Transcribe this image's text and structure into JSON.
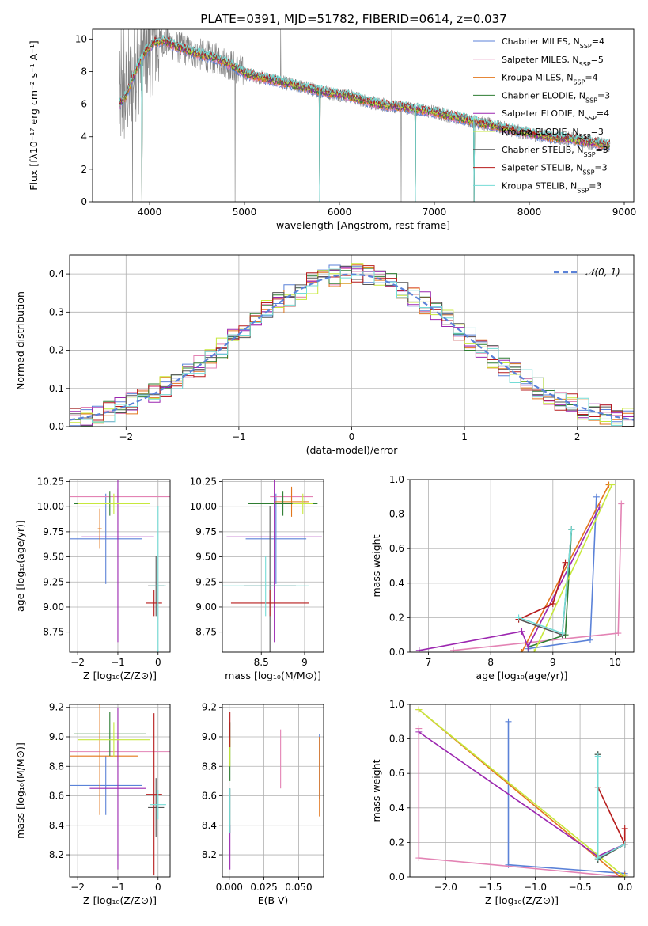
{
  "colors": {
    "c1": "#5b82d8",
    "c2": "#e383b4",
    "c3": "#e3761c",
    "c4": "#2e7d32",
    "c5": "#9c27b0",
    "c6": "#c7e83c",
    "c7": "#555555",
    "c8": "#b71c1c",
    "c9": "#74dcd6",
    "data": "#808080",
    "gauss": "#5b82d8"
  },
  "chart_data": [
    {
      "id": "spectrum",
      "type": "line",
      "title": "PLATE=0391, MJD=51782, FIBERID=0614, z=0.037",
      "xlabel": "wavelength [Angstrom, rest frame]",
      "ylabel": "Flux [fλ10⁻¹⁷ erg cm⁻² s⁻¹ A⁻¹]",
      "xlim": [
        3400,
        9100
      ],
      "ylim": [
        0,
        10.6
      ],
      "xticks": [
        4000,
        5000,
        6000,
        7000,
        8000,
        9000
      ],
      "yticks": [
        0,
        2,
        4,
        6,
        8,
        10
      ],
      "legend_position": "top-right",
      "legend": [
        {
          "label": "Chabrier MILES, N",
          "sub": "SSP",
          "suffix": "=4"
        },
        {
          "label": "Salpeter MILES, N",
          "sub": "SSP",
          "suffix": "=5"
        },
        {
          "label": "Kroupa MILES, N",
          "sub": "SSP",
          "suffix": "=4"
        },
        {
          "label": "Chabrier ELODIE, N",
          "sub": "SSP",
          "suffix": "=3"
        },
        {
          "label": "Salpeter ELODIE, N",
          "sub": "SSP",
          "suffix": "=4"
        },
        {
          "label": "Kroupa ELODIE, N",
          "sub": "SSP",
          "suffix": "=3"
        },
        {
          "label": "Chabrier STELIB, N",
          "sub": "SSP",
          "suffix": "=3"
        },
        {
          "label": "Salpeter STELIB, N",
          "sub": "SSP",
          "suffix": "=3"
        },
        {
          "label": "Kroupa STELIB, N",
          "sub": "SSP",
          "suffix": "=3"
        }
      ],
      "model_envelope": {
        "x": [
          3680,
          3750,
          3850,
          3950,
          4050,
          4150,
          4300,
          4500,
          4700,
          4860,
          5000,
          5200,
          5500,
          5800,
          6100,
          6400,
          6700,
          7000,
          7300,
          7600,
          7900,
          8200,
          8500,
          8800
        ],
        "y": [
          6.0,
          6.5,
          8.0,
          9.2,
          9.8,
          9.9,
          9.5,
          9.1,
          8.8,
          8.4,
          7.9,
          7.6,
          7.2,
          6.8,
          6.5,
          6.0,
          5.8,
          5.5,
          5.1,
          4.7,
          4.3,
          4.0,
          3.8,
          3.5
        ]
      },
      "model_drops": [
        3920,
        5790,
        6800,
        7420
      ],
      "data_spikes": [
        3700,
        3730,
        3780,
        3820,
        3870,
        4900,
        5380,
        6550,
        6650
      ]
    },
    {
      "id": "residuals",
      "type": "histogram",
      "xlabel": "(data-model)/error",
      "ylabel": "Normed distribution",
      "xlim": [
        -2.5,
        2.5
      ],
      "ylim": [
        0,
        0.45
      ],
      "xticks": [
        -2,
        -1,
        0,
        1,
        2
      ],
      "yticks": [
        0.0,
        0.1,
        0.2,
        0.3,
        0.4
      ],
      "legend_position": "top-right",
      "gauss_label": "𝒩(0, 1)",
      "bins": 50
    },
    {
      "id": "age-vs-Z",
      "type": "errorbar",
      "xlabel": "Z [log₁₀(Z/Z⊙)]",
      "ylabel": "age  [log₁₀(age/yr)]",
      "xlim": [
        -2.2,
        0.3
      ],
      "ylim": [
        8.55,
        10.27
      ],
      "xticks": [
        -2,
        -1,
        0
      ],
      "yticks": [
        8.75,
        9.0,
        9.25,
        9.5,
        9.75,
        10.0,
        10.25
      ],
      "points": [
        {
          "c": "c1",
          "x": -1.3,
          "y": 9.68,
          "xe": 0.9,
          "ye": 0.45
        },
        {
          "c": "c2",
          "x": -1.0,
          "y": 10.1,
          "xe": 1.3,
          "ye": 0.08
        },
        {
          "c": "c3",
          "x": -1.45,
          "y": 9.78,
          "xe": 0.05,
          "ye": 0.2
        },
        {
          "c": "c4",
          "x": -1.2,
          "y": 10.03,
          "xe": 0.9,
          "ye": 0.12
        },
        {
          "c": "c5",
          "x": -1.0,
          "y": 9.7,
          "xe": 0.9,
          "ye": 1.05
        },
        {
          "c": "c6",
          "x": -1.1,
          "y": 10.03,
          "xe": 0.9,
          "ye": 0.1
        },
        {
          "c": "c7",
          "x": -0.05,
          "y": 9.21,
          "xe": 0.2,
          "ye": 0.3
        },
        {
          "c": "c8",
          "x": -0.1,
          "y": 9.04,
          "xe": 0.2,
          "ye": 0.13
        },
        {
          "c": "c9",
          "x": 0.0,
          "y": 9.21,
          "xe": 0.2,
          "ye": 0.8
        }
      ]
    },
    {
      "id": "age-vs-mass",
      "type": "errorbar",
      "xlabel": "mass [log₁₀(M/M⊙)]",
      "ylabel": "",
      "xlim": [
        8.05,
        9.22
      ],
      "ylim": [
        8.55,
        10.27
      ],
      "xticks": [
        8.5,
        9.0
      ],
      "yticks": [
        8.75,
        9.0,
        9.25,
        9.5,
        9.75,
        10.0,
        10.25
      ],
      "points": [
        {
          "c": "c1",
          "x": 8.67,
          "y": 9.68,
          "xe": 0.35,
          "ye": 0.45
        },
        {
          "c": "c2",
          "x": 8.85,
          "y": 10.1,
          "xe": 0.25,
          "ye": 0.08
        },
        {
          "c": "c3",
          "x": 8.85,
          "y": 10.05,
          "xe": 0.2,
          "ye": 0.15
        },
        {
          "c": "c4",
          "x": 8.75,
          "y": 10.03,
          "xe": 0.4,
          "ye": 0.12
        },
        {
          "c": "c5",
          "x": 8.65,
          "y": 9.7,
          "xe": 0.55,
          "ye": 1.05
        },
        {
          "c": "c6",
          "x": 8.98,
          "y": 10.03,
          "xe": 0.12,
          "ye": 0.1
        },
        {
          "c": "c7",
          "x": 8.6,
          "y": 9.21,
          "xe": 0.3,
          "ye": 0.8
        },
        {
          "c": "c8",
          "x": 8.6,
          "y": 9.04,
          "xe": 0.45,
          "ye": 0.13
        },
        {
          "c": "c9",
          "x": 8.55,
          "y": 9.21,
          "xe": 0.5,
          "ye": 0.3
        }
      ]
    },
    {
      "id": "weight-vs-age",
      "type": "line",
      "xlabel": "age  [log₁₀(age/yr)]",
      "ylabel": "mass weight",
      "xlim": [
        6.7,
        10.3
      ],
      "ylim": [
        0,
        1
      ],
      "xticks": [
        7,
        8,
        9,
        10
      ],
      "yticks": [
        0.0,
        0.2,
        0.4,
        0.6,
        0.8,
        1.0
      ],
      "series": [
        {
          "c": "c1",
          "x": [
            8.6,
            9.6,
            9.7
          ],
          "y": [
            0.02,
            0.07,
            0.9
          ]
        },
        {
          "c": "c2",
          "x": [
            7.4,
            10.05,
            10.1
          ],
          "y": [
            0.01,
            0.11,
            0.86
          ]
        },
        {
          "c": "c3",
          "x": [
            8.5,
            9.9
          ],
          "y": [
            0.0,
            0.97
          ]
        },
        {
          "c": "c4",
          "x": [
            8.6,
            9.2,
            9.3
          ],
          "y": [
            0.03,
            0.1,
            0.71
          ]
        },
        {
          "c": "c5",
          "x": [
            6.85,
            8.5,
            8.6,
            9.75
          ],
          "y": [
            0.01,
            0.12,
            0.03,
            0.84
          ]
        },
        {
          "c": "c6",
          "x": [
            8.7,
            9.95
          ],
          "y": [
            0.0,
            0.97
          ]
        },
        {
          "c": "c7",
          "x": [
            8.45,
            9.15,
            9.3
          ],
          "y": [
            0.19,
            0.1,
            0.71
          ]
        },
        {
          "c": "c8",
          "x": [
            8.45,
            9.0,
            9.2
          ],
          "y": [
            0.19,
            0.28,
            0.52
          ]
        },
        {
          "c": "c9",
          "x": [
            8.45,
            9.15,
            9.3
          ],
          "y": [
            0.2,
            0.11,
            0.71
          ]
        }
      ]
    },
    {
      "id": "mass-vs-Z",
      "type": "errorbar",
      "xlabel": "Z [log₁₀(Z/Z⊙)]",
      "ylabel": "mass [log₁₀(M/M⊙)]",
      "xlim": [
        -2.2,
        0.3
      ],
      "ylim": [
        8.05,
        9.22
      ],
      "xticks": [
        -2,
        -1,
        0
      ],
      "yticks": [
        8.2,
        8.4,
        8.6,
        8.8,
        9.0,
        9.2
      ],
      "points": [
        {
          "c": "c1",
          "x": -1.3,
          "y": 8.67,
          "xe": 0.9,
          "ye": 0.2
        },
        {
          "c": "c2",
          "x": -1.0,
          "y": 8.9,
          "xe": 1.3,
          "ye": 0.07
        },
        {
          "c": "c3",
          "x": -1.45,
          "y": 8.87,
          "xe": 0.95,
          "ye": 0.4
        },
        {
          "c": "c4",
          "x": -1.2,
          "y": 9.02,
          "xe": 0.9,
          "ye": 0.15
        },
        {
          "c": "c5",
          "x": -1.0,
          "y": 8.65,
          "xe": 0.7,
          "ye": 0.55
        },
        {
          "c": "c6",
          "x": -1.1,
          "y": 8.98,
          "xe": 0.9,
          "ye": 0.12
        },
        {
          "c": "c7",
          "x": -0.05,
          "y": 8.52,
          "xe": 0.2,
          "ye": 0.2
        },
        {
          "c": "c8",
          "x": -0.1,
          "y": 8.61,
          "xe": 0.2,
          "ye": 0.55
        },
        {
          "c": "c9",
          "x": 0.0,
          "y": 8.54,
          "xe": 0.2,
          "ye": 0.1
        }
      ]
    },
    {
      "id": "mass-vs-EBV",
      "type": "errorbar",
      "xlabel": "E(B-V)",
      "ylabel": "",
      "xlim": [
        -0.005,
        0.068
      ],
      "ylim": [
        8.05,
        9.22
      ],
      "xticks": [
        0.0,
        0.025,
        0.05
      ],
      "ytick_labels": [
        "8.2",
        "8.4",
        "8.6",
        "8.8",
        "9.0",
        "9.2"
      ],
      "xtick_labels": [
        "0.000",
        "0.025",
        "0.050"
      ],
      "yticks": [
        8.2,
        8.4,
        8.6,
        8.8,
        9.0,
        9.2
      ],
      "points": [
        {
          "c": "c1",
          "x": 0.065,
          "y": 8.8,
          "xe": 0,
          "ye": 0.22
        },
        {
          "c": "c2",
          "x": 0.037,
          "y": 8.85,
          "xe": 0,
          "ye": 0.2
        },
        {
          "c": "c3",
          "x": 0.065,
          "y": 8.73,
          "xe": 0,
          "ye": 0.27
        },
        {
          "c": "c4",
          "x": 0.0005,
          "y": 8.9,
          "xe": 0,
          "ye": 0.2
        },
        {
          "c": "c5",
          "x": 0.0005,
          "y": 8.25,
          "xe": 0,
          "ye": 0.15
        },
        {
          "c": "c6",
          "x": 0.0005,
          "y": 8.9,
          "xe": 0,
          "ye": 0.1
        },
        {
          "c": "c7",
          "x": 0.0005,
          "y": 8.5,
          "xe": 0,
          "ye": 0.15
        },
        {
          "c": "c8",
          "x": 0.0005,
          "y": 9.05,
          "xe": 0,
          "ye": 0.12
        },
        {
          "c": "c9",
          "x": 0.0005,
          "y": 8.5,
          "xe": 0,
          "ye": 0.15
        }
      ]
    },
    {
      "id": "weight-vs-Z",
      "type": "line",
      "xlabel": "Z [log₁₀(Z/Z⊙)]",
      "ylabel": "mass weight",
      "xlim": [
        -2.4,
        0.1
      ],
      "ylim": [
        0,
        1
      ],
      "xticks": [
        -2.0,
        -1.5,
        -1.0,
        -0.5,
        0.0
      ],
      "xtick_labels": [
        "−2.0",
        "−1.5",
        "−1.0",
        "−0.5",
        "0.0"
      ],
      "yticks": [
        0.0,
        0.2,
        0.4,
        0.6,
        0.8,
        1.0
      ],
      "series": [
        {
          "c": "c1",
          "x": [
            -1.3,
            -1.3,
            0.0
          ],
          "y": [
            0.9,
            0.07,
            0.02
          ]
        },
        {
          "c": "c2",
          "x": [
            -2.3,
            -2.3,
            0.0
          ],
          "y": [
            0.86,
            0.11,
            0.0
          ]
        },
        {
          "c": "c3",
          "x": [
            -2.3,
            -0.05,
            0.0
          ],
          "y": [
            0.97,
            0.0,
            0.01
          ]
        },
        {
          "c": "c4",
          "x": [
            -0.3,
            -0.3,
            0.0
          ],
          "y": [
            0.71,
            0.1,
            0.19
          ]
        },
        {
          "c": "c5",
          "x": [
            -2.3,
            -0.3,
            0.0
          ],
          "y": [
            0.84,
            0.12,
            0.19
          ]
        },
        {
          "c": "c6",
          "x": [
            -2.3,
            0.0
          ],
          "y": [
            0.97,
            0.0
          ]
        },
        {
          "c": "c7",
          "x": [
            -0.3,
            -0.3,
            0.0
          ],
          "y": [
            0.71,
            0.1,
            0.19
          ]
        },
        {
          "c": "c8",
          "x": [
            -0.3,
            0.0,
            0.0
          ],
          "y": [
            0.52,
            0.19,
            0.28
          ]
        },
        {
          "c": "c9",
          "x": [
            -0.3,
            -0.3,
            0.0
          ],
          "y": [
            0.7,
            0.11,
            0.19
          ]
        }
      ]
    }
  ]
}
